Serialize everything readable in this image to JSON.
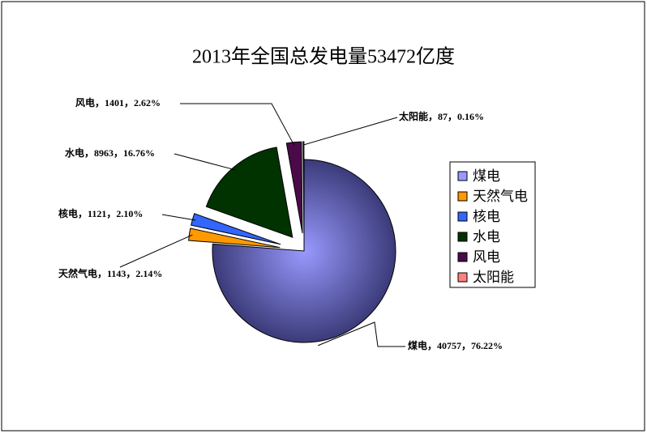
{
  "chart_data": {
    "type": "pie",
    "title": "2013年全国总发电量53472亿度",
    "categories": [
      "煤电",
      "天然气电",
      "核电",
      "水电",
      "风电",
      "太阳能"
    ],
    "values": [
      40757,
      1143,
      1121,
      8963,
      1401,
      87
    ],
    "value_labels": [
      "煤电，40757，76.22%",
      "天然气电，1143，2.14%",
      "核电，1121，2.10%",
      "水电，8963，16.76%",
      "风电，1401，2.62%",
      "太阳能，87，0.16%"
    ],
    "colors": [
      "#9999ff",
      "#ff9900",
      "#3366ff",
      "#003300",
      "#4a0a4a",
      "#ff8080"
    ],
    "legend": "right"
  }
}
